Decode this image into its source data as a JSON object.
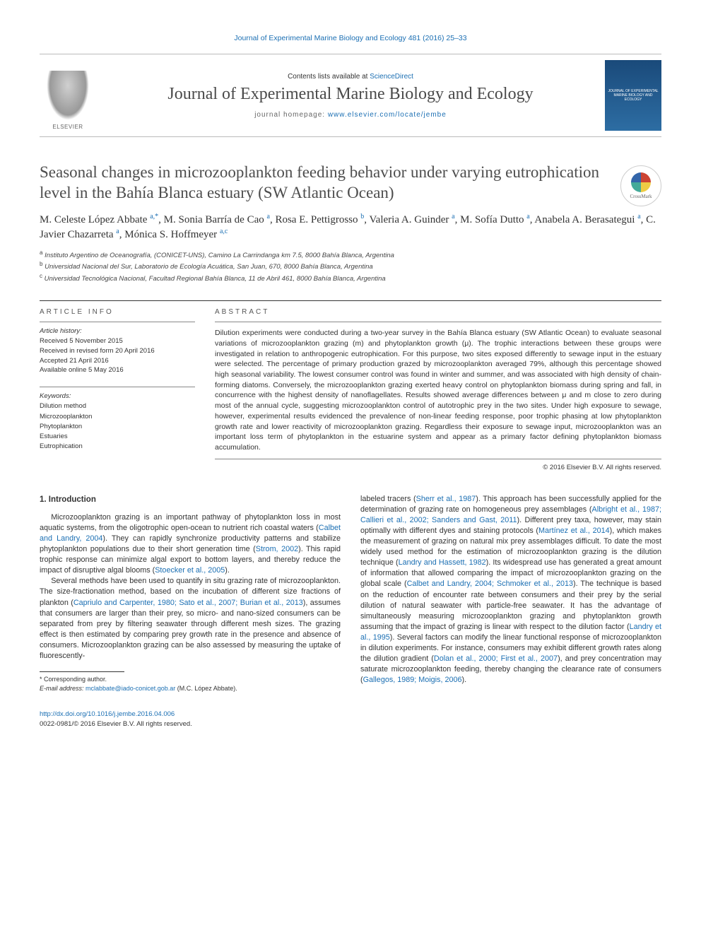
{
  "toplink": {
    "journal": "Journal of Experimental Marine Biology and Ecology",
    "issue": "481 (2016) 25–33"
  },
  "masthead": {
    "contents_prefix": "Contents lists available at ",
    "contents_link": "ScienceDirect",
    "journal_name": "Journal of Experimental Marine Biology and Ecology",
    "homepage_prefix": "journal homepage: ",
    "homepage_url": "www.elsevier.com/locate/jembe",
    "cover_text": "JOURNAL OF EXPERIMENTAL MARINE BIOLOGY AND ECOLOGY"
  },
  "title": "Seasonal changes in microzooplankton feeding behavior under varying eutrophication level in the Bahía Blanca estuary (SW Atlantic Ocean)",
  "crossmark": "CrossMark",
  "authors": [
    {
      "name": "M. Celeste López Abbate ",
      "sup": "a,",
      "star": "*"
    },
    {
      "name": ", M. Sonia Barría de Cao ",
      "sup": "a"
    },
    {
      "name": ", Rosa E. Pettigrosso ",
      "sup": "b"
    },
    {
      "name": ", Valeria A. Guinder ",
      "sup": "a"
    },
    {
      "name": ", M. Sofía Dutto ",
      "sup": "a"
    },
    {
      "name": ", Anabela A. Berasategui ",
      "sup": "a"
    },
    {
      "name": ", C. Javier Chazarreta ",
      "sup": "a"
    },
    {
      "name": ", Mónica S. Hoffmeyer ",
      "sup": "a,c"
    }
  ],
  "affiliations": [
    {
      "sup": "a",
      "text": " Instituto Argentino de Oceanografía, (CONICET-UNS), Camino La Carrindanga km 7.5, 8000 Bahía Blanca, Argentina"
    },
    {
      "sup": "b",
      "text": " Universidad Nacional del Sur, Laboratorio de Ecología Acuática, San Juan, 670, 8000 Bahía Blanca, Argentina"
    },
    {
      "sup": "c",
      "text": " Universidad Tecnológica Nacional, Facultad Regional Bahía Blanca, 11 de Abril 461, 8000 Bahía Blanca, Argentina"
    }
  ],
  "info": {
    "heading": "article info",
    "history_label": "Article history:",
    "history": [
      "Received 5 November 2015",
      "Received in revised form 20 April 2016",
      "Accepted 21 April 2016",
      "Available online 5 May 2016"
    ],
    "keywords_label": "Keywords:",
    "keywords": [
      "Dilution method",
      "Microzooplankton",
      "Phytoplankton",
      "Estuaries",
      "Eutrophication"
    ]
  },
  "abstract": {
    "heading": "abstract",
    "text": "Dilution experiments were conducted during a two-year survey in the Bahía Blanca estuary (SW Atlantic Ocean) to evaluate seasonal variations of microzooplankton grazing (m) and phytoplankton growth (μ). The trophic interactions between these groups were investigated in relation to anthropogenic eutrophication. For this purpose, two sites exposed differently to sewage input in the estuary were selected. The percentage of primary production grazed by microzooplankton averaged 79%, although this percentage showed high seasonal variability. The lowest consumer control was found in winter and summer, and was associated with high density of chain-forming diatoms. Conversely, the microzooplankton grazing exerted heavy control on phytoplankton biomass during spring and fall, in concurrence with the highest density of nanoflagellates. Results showed average differences between μ and m close to zero during most of the annual cycle, suggesting microzooplankton control of autotrophic prey in the two sites. Under high exposure to sewage, however, experimental results evidenced the prevalence of non-linear feeding response, poor trophic phasing at low phytoplankton growth rate and lower reactivity of microzooplankton grazing. Regardless their exposure to sewage input, microzooplankton was an important loss term of phytoplankton in the estuarine system and appear as a primary factor defining phytoplankton biomass accumulation.",
    "copyright": "© 2016 Elsevier B.V. All rights reserved."
  },
  "body": {
    "heading": "1. Introduction",
    "left": {
      "p1_pre": "Microzooplankton grazing is an important pathway of phytoplankton loss in most aquatic systems, from the oligotrophic open-ocean to nutrient rich coastal waters (",
      "p1_link1": "Calbet and Landry, 2004",
      "p1_mid1": "). They can rapidly synchronize productivity patterns and stabilize phytoplankton populations due to their short generation time (",
      "p1_link2": "Strom, 2002",
      "p1_mid2": "). This rapid trophic response can minimize algal export to bottom layers, and thereby reduce the impact of disruptive algal blooms (",
      "p1_link3": "Stoecker et al., 2005",
      "p1_end": ").",
      "p2_pre": "Several methods have been used to quantify in situ grazing rate of microzooplankton. The size-fractionation method, based on the incubation of different size fractions of plankton (",
      "p2_link1": "Capriulo and Carpenter, 1980; Sato et al., 2007; Burian et al., 2013",
      "p2_end": "), assumes that consumers are larger than their prey, so micro- and nano-sized consumers can be separated from prey by filtering seawater through different mesh sizes. The grazing effect is then estimated by comparing prey growth rate in the presence and absence of consumers. Microzooplankton grazing can be also assessed by measuring the uptake of fluorescently-"
    },
    "right": {
      "p1_pre": "labeled tracers (",
      "p1_link1": "Sherr et al., 1987",
      "p1_mid1": "). This approach has been successfully applied for the determination of grazing rate on homogeneous prey assemblages (",
      "p1_link2": "Albright et al., 1987; Callieri et al., 2002; Sanders and Gast, 2011",
      "p1_mid2": "). Different prey taxa, however, may stain optimally with different dyes and staining protocols (",
      "p1_link3": "Martínez et al., 2014",
      "p1_mid3": "), which makes the measurement of grazing on natural mix prey assemblages difficult. To date the most widely used method for the estimation of microzooplankton grazing is the dilution technique (",
      "p1_link4": "Landry and Hassett, 1982",
      "p1_mid4": "). Its widespread use has generated a great amount of information that allowed comparing the impact of microzooplankton grazing on the global scale (",
      "p1_link5": "Calbet and Landry, 2004; Schmoker et al., 2013",
      "p1_mid5": "). The technique is based on the reduction of encounter rate between consumers and their prey by the serial dilution of natural seawater with particle-free seawater. It has the advantage of simultaneously measuring microzooplankton grazing and phytoplankton growth assuming that the impact of grazing is linear with respect to the dilution factor (",
      "p1_link6": "Landry et al., 1995",
      "p1_mid6": "). Several factors can modify the linear functional response of microzooplankton in dilution experiments. For instance, consumers may exhibit different growth rates along the dilution gradient (",
      "p1_link7": "Dolan et al., 2000; First et al., 2007",
      "p1_mid7": "), and prey concentration may saturate microzooplankton feeding, thereby changing the clearance rate of consumers (",
      "p1_link8": "Gallegos, 1989; Moigis, 2006",
      "p1_end": ")."
    }
  },
  "footnotes": {
    "corr_label": "* Corresponding author.",
    "email_label": "E-mail address: ",
    "email": "mclabbate@iado-conicet.gob.ar",
    "email_suffix": " (M.C. López Abbate)."
  },
  "footer": {
    "doi": "http://dx.doi.org/10.1016/j.jembe.2016.04.006",
    "issn_line": "0022-0981/© 2016 Elsevier B.V. All rights reserved."
  }
}
